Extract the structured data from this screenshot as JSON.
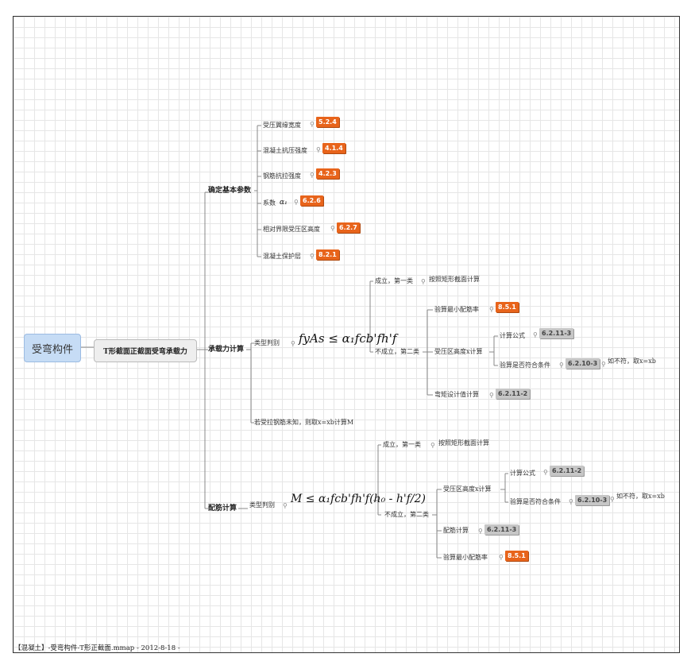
{
  "root": {
    "label": "受弯构件"
  },
  "main": {
    "label": "T形截面正截面受弯承载力"
  },
  "icons": {
    "link": "⚲"
  },
  "colors": {
    "orange_tag": "#e8641b",
    "gray_tag": "#c6c6c6",
    "root_fill": "#c6dcf5"
  },
  "branches": {
    "basic": {
      "label": "确定基本参数",
      "items": [
        {
          "label": "受压翼缘宽度",
          "tag": "5.2.4"
        },
        {
          "label": "混凝土抗压强度",
          "tag": "4.1.4"
        },
        {
          "label": "钢筋抗拉强度",
          "tag": "4.2.3"
        },
        {
          "label": "系数",
          "symbol": "α₁",
          "tag": "6.2.6"
        },
        {
          "label": "相对界限受压区高度",
          "tag": "6.2.7"
        },
        {
          "label": "混凝土保护层",
          "tag": "8.2.1"
        }
      ]
    },
    "capacity": {
      "label": "承载力计算",
      "type": {
        "label": "类型判别",
        "formula": "fyAs ≤ α₁fcb'fh'f",
        "holds": {
          "label": "成立，第一类",
          "child": "按照矩形截面计算"
        },
        "notholds": {
          "label": "不成立，第二类",
          "items": [
            {
              "label": "验算最小配筋率",
              "tag": "8.5.1"
            },
            {
              "label": "受压区高度x计算",
              "sub": [
                {
                  "label": "计算公式",
                  "tag": "6.2.11-3"
                },
                {
                  "label": "验算是否符合条件",
                  "tag": "6.2.10-3",
                  "note": "如不符，取x=xb"
                }
              ]
            },
            {
              "label": "弯矩设计值计算",
              "tag": "6.2.11-2"
            }
          ]
        }
      },
      "note": "若受拉钢筋未知，则取x=xb计算M"
    },
    "reinforcement": {
      "label": "配筋计算",
      "type": {
        "label": "类型判别",
        "formula": "M ≤ α₁fcb'fh'f(h₀ - h'f/2)",
        "holds": {
          "label": "成立，第一类",
          "child": "按照矩形截面计算"
        },
        "notholds": {
          "label": "不成立，第二类",
          "items": [
            {
              "label": "受压区高度x计算",
              "sub": [
                {
                  "label": "计算公式",
                  "tag": "6.2.11-2"
                },
                {
                  "label": "验算是否符合条件",
                  "tag": "6.2.10-3",
                  "note": "如不符，取x=xb"
                }
              ]
            },
            {
              "label": "配筋计算",
              "tag": "6.2.11-3"
            },
            {
              "label": "验算最小配筋率",
              "tag": "8.5.1"
            }
          ]
        }
      }
    }
  },
  "footer": "【混凝土】-受弯构件-T形正截面.mmap - 2012-8-18 -"
}
